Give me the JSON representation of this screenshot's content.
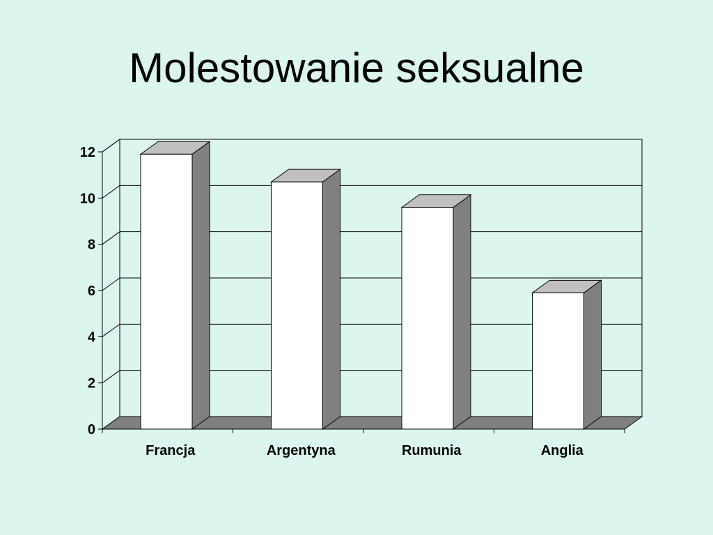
{
  "slide": {
    "title": "Molestowanie seksualne"
  },
  "chart_data": {
    "type": "bar",
    "style": "3d-column",
    "categories": [
      "Francja",
      "Argentyna",
      "Rumunia",
      "Anglia"
    ],
    "values": [
      11.9,
      10.7,
      9.6,
      5.9
    ],
    "ylim": [
      0,
      12
    ],
    "yticks": [
      "0",
      "2",
      "4",
      "6",
      "8",
      "10",
      "12"
    ],
    "grid": true,
    "legend": "none",
    "colors": {
      "bar_front": "#ffffff",
      "bar_side": "#808080",
      "bar_top": "#c0c0c0",
      "floor": "#808080",
      "plot_background": "#dcf5ee",
      "gridline": "#000000"
    }
  }
}
